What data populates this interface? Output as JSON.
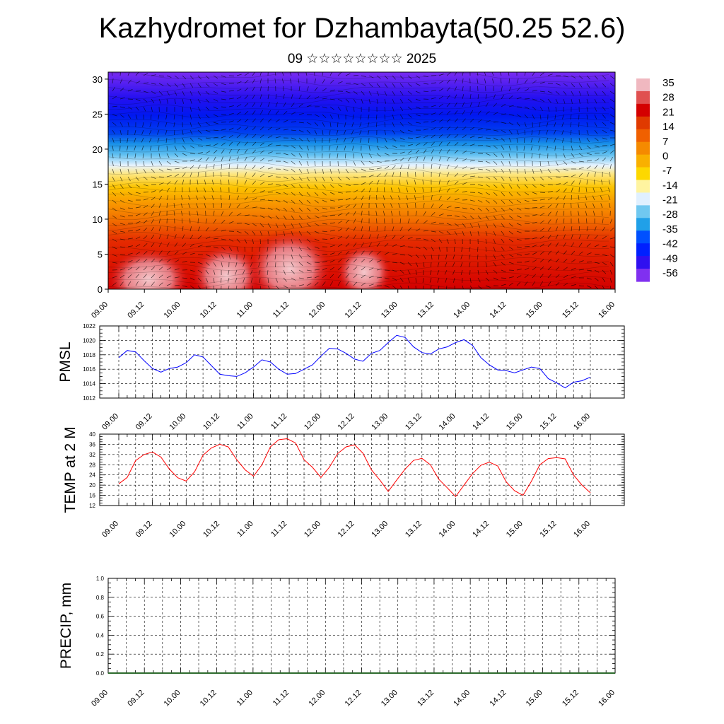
{
  "title": "Kazhydromet for Dzhambayta(50.25 52.6)",
  "subtitle": "09 ☆☆☆☆☆☆☆☆ 2025",
  "colors": {
    "pmsl_line": "#0000ff",
    "temp_line": "#ff0000",
    "precip_line": "#2e6b2e",
    "colorbar": [
      "#f0b8c0",
      "#e05050",
      "#d40000",
      "#e03a00",
      "#f06000",
      "#f58a00",
      "#f9b000",
      "#fdd800",
      "#fff4a0",
      "#e0f0ff",
      "#70c8f0",
      "#20a0e8",
      "#0050ff",
      "#0020ff",
      "#3010f0",
      "#8030f0"
    ]
  },
  "chart_data": [
    {
      "type": "heatmap",
      "title": "",
      "xlabel": "",
      "ylabel": "",
      "x_ticks": [
        "09.00",
        "09.12",
        "10.00",
        "10.12",
        "11.00",
        "11.12",
        "12.00",
        "12.12",
        "13.00",
        "13.12",
        "14.00",
        "14.12",
        "15.00",
        "15.12",
        "16.00"
      ],
      "y_ticks": [
        "0",
        "5",
        "10",
        "15",
        "20",
        "25",
        "30"
      ],
      "ylim": [
        0,
        31
      ],
      "colorbar_labels": [
        "35",
        "28",
        "21",
        "14",
        "7",
        "0",
        "-7",
        "-14",
        "-21",
        "-28",
        "-35",
        "-42",
        "-49",
        "-56"
      ]
    },
    {
      "type": "line",
      "ylabel": "PMSL",
      "x_ticks": [
        "09.00",
        "09.12",
        "10.00",
        "10.12",
        "11.00",
        "11.12",
        "12.00",
        "12.12",
        "13.00",
        "13.12",
        "14.00",
        "14.12",
        "15.00",
        "15.12",
        "16.00"
      ],
      "y_ticks": [
        "1012",
        "1014",
        "1016",
        "1018",
        "1020",
        "1022"
      ],
      "ylim": [
        1012,
        1022
      ],
      "x": [
        0,
        3,
        6,
        9,
        12,
        15,
        18,
        21,
        24,
        27,
        30,
        33,
        36,
        39,
        42,
        45,
        48,
        51,
        54,
        57,
        60,
        63,
        66,
        69,
        72,
        75,
        78,
        81,
        84,
        87,
        90,
        93,
        96,
        99,
        102,
        105,
        108,
        111,
        114,
        117,
        120,
        123,
        126,
        129,
        132,
        135,
        138,
        141,
        144,
        147,
        150,
        153,
        156,
        159,
        162,
        165,
        168
      ],
      "series": [
        {
          "values": [
            1017.6,
            1018.6,
            1018.4,
            1017.2,
            1016.1,
            1015.6,
            1016.1,
            1016.3,
            1016.9,
            1018.0,
            1017.7,
            1016.5,
            1015.3,
            1015.1,
            1015.0,
            1015.5,
            1016.3,
            1017.3,
            1017.0,
            1016.0,
            1015.3,
            1015.4,
            1016.0,
            1016.6,
            1017.8,
            1018.9,
            1018.8,
            1018.2,
            1017.4,
            1017.1,
            1018.2,
            1018.6,
            1019.7,
            1020.7,
            1020.4,
            1019.1,
            1018.3,
            1018.1,
            1018.8,
            1019.1,
            1019.7,
            1020.1,
            1019.3,
            1017.6,
            1016.6,
            1015.9,
            1015.8,
            1015.5,
            1015.9,
            1016.3,
            1016.1,
            1014.7,
            1014.1,
            1013.4,
            1014.2,
            1014.4,
            1014.9
          ]
        }
      ]
    },
    {
      "type": "line",
      "ylabel": "TEMP at 2 M",
      "x_ticks": [
        "09.00",
        "09.12",
        "10.00",
        "10.12",
        "11.00",
        "11.12",
        "12.00",
        "12.12",
        "13.00",
        "13.12",
        "14.00",
        "14.12",
        "15.00",
        "15.12",
        "16.00"
      ],
      "y_ticks": [
        "12",
        "16",
        "20",
        "24",
        "28",
        "32",
        "36",
        "40"
      ],
      "ylim": [
        12,
        40
      ],
      "x": [
        0,
        3,
        6,
        9,
        12,
        15,
        18,
        21,
        24,
        27,
        30,
        33,
        36,
        39,
        42,
        45,
        48,
        51,
        54,
        57,
        60,
        63,
        66,
        69,
        72,
        75,
        78,
        81,
        84,
        87,
        90,
        93,
        96,
        99,
        102,
        105,
        108,
        111,
        114,
        117,
        120,
        123,
        126,
        129,
        132,
        135,
        138,
        141,
        144,
        147,
        150,
        153,
        156,
        159,
        162,
        165,
        168
      ],
      "series": [
        {
          "values": [
            20.5,
            23.0,
            29.6,
            32.0,
            33.0,
            31.0,
            26.3,
            22.9,
            21.6,
            25.2,
            31.7,
            34.6,
            36.0,
            35.0,
            30.0,
            26.0,
            23.5,
            28.0,
            35.0,
            37.8,
            38.2,
            36.5,
            30.0,
            27.0,
            23.0,
            27.0,
            32.4,
            35.0,
            35.8,
            32.5,
            26.0,
            22.0,
            17.5,
            22.0,
            26.3,
            29.7,
            30.5,
            28.0,
            22.3,
            19.0,
            15.5,
            20.0,
            24.5,
            27.8,
            29.0,
            27.5,
            21.3,
            17.8,
            16.0,
            21.5,
            28.0,
            30.4,
            30.8,
            30.3,
            24.0,
            20.0,
            17.0
          ]
        }
      ]
    },
    {
      "type": "line",
      "ylabel": "PRECIP, mm",
      "x_ticks": [
        "09.00",
        "09.12",
        "10.00",
        "10.12",
        "11.00",
        "11.12",
        "12.00",
        "12.12",
        "13.00",
        "13.12",
        "14.00",
        "14.12",
        "15.00",
        "15.12",
        "16.00"
      ],
      "y_ticks": [
        "0.0",
        "0.2",
        "0.4",
        "0.6",
        "0.8",
        "1.0"
      ],
      "ylim": [
        0,
        1
      ],
      "x": [
        0,
        168
      ],
      "series": [
        {
          "values": [
            0,
            0
          ]
        }
      ]
    }
  ]
}
